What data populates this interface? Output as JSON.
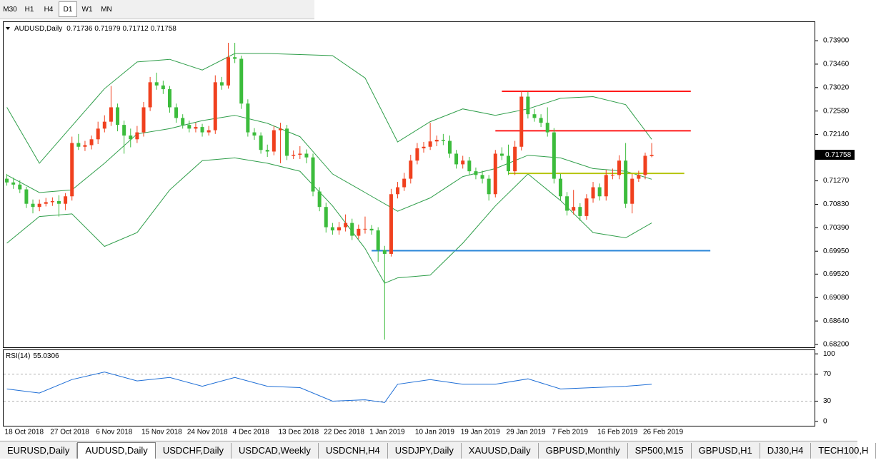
{
  "toolbar": {
    "timeframes": [
      "M30",
      "H1",
      "H4",
      "D1",
      "W1",
      "MN"
    ],
    "active": 3
  },
  "chart_data": [
    {
      "type": "candlestick",
      "title": "AUDUSD,Daily",
      "categories": [
        "18 Oct 2018",
        null,
        null,
        null,
        null,
        null,
        null,
        "27 Oct 2018",
        null,
        null,
        null,
        null,
        null,
        null,
        "6 Nov 2018",
        null,
        null,
        null,
        null,
        null,
        null,
        "15 Nov 2018",
        null,
        null,
        null,
        null,
        null,
        null,
        "24 Nov 2018",
        null,
        null,
        null,
        null,
        null,
        null,
        "4 Dec 2018",
        null,
        null,
        null,
        null,
        null,
        null,
        "13 Dec 2018",
        null,
        null,
        null,
        null,
        null,
        null,
        "22 Dec 2018",
        null,
        null,
        null,
        null,
        null,
        null,
        "1 Jan 2019",
        null,
        null,
        null,
        null,
        null,
        null,
        "10 Jan 2019",
        null,
        null,
        null,
        null,
        null,
        null,
        "19 Jan 2019",
        null,
        null,
        null,
        null,
        null,
        null,
        "29 Jan 2019",
        null,
        null,
        null,
        null,
        null,
        null,
        "7 Feb 2019",
        null,
        null,
        null,
        null,
        null,
        null,
        "16 Feb 2019",
        null,
        null,
        null,
        null,
        null,
        null,
        "26 Feb 2019",
        null
      ],
      "ohlc": [
        [
          0.7131,
          0.714,
          0.7118,
          0.7124
        ],
        [
          0.7124,
          0.7133,
          0.7112,
          0.712
        ],
        [
          0.712,
          0.7128,
          0.7104,
          0.7111
        ],
        [
          0.7111,
          0.7116,
          0.7076,
          0.7084
        ],
        [
          0.7084,
          0.7092,
          0.7066,
          0.7078
        ],
        [
          0.7078,
          0.7092,
          0.707,
          0.7084
        ],
        [
          0.7084,
          0.7095,
          0.7079,
          0.7087
        ],
        [
          0.7087,
          0.7096,
          0.708,
          0.7089
        ],
        [
          0.7089,
          0.71,
          0.706,
          0.7084
        ],
        [
          0.7084,
          0.7104,
          0.7072,
          0.7098
        ],
        [
          0.7098,
          0.721,
          0.709,
          0.7198
        ],
        [
          0.7198,
          0.7215,
          0.7185,
          0.7191
        ],
        [
          0.7191,
          0.7202,
          0.7183,
          0.7194
        ],
        [
          0.7194,
          0.7212,
          0.7186,
          0.7205
        ],
        [
          0.7205,
          0.7238,
          0.7196,
          0.7225
        ],
        [
          0.7225,
          0.725,
          0.7218,
          0.7238
        ],
        [
          0.7238,
          0.7305,
          0.723,
          0.7265
        ],
        [
          0.7265,
          0.7272,
          0.722,
          0.7232
        ],
        [
          0.7232,
          0.724,
          0.7178,
          0.7212
        ],
        [
          0.7212,
          0.7225,
          0.719,
          0.7205
        ],
        [
          0.7205,
          0.723,
          0.7198,
          0.7218
        ],
        [
          0.7218,
          0.7275,
          0.721,
          0.7265
        ],
        [
          0.7265,
          0.7322,
          0.7258,
          0.7312
        ],
        [
          0.7312,
          0.733,
          0.7298,
          0.7306
        ],
        [
          0.7306,
          0.7315,
          0.729,
          0.7299
        ],
        [
          0.7299,
          0.7305,
          0.7255,
          0.7265
        ],
        [
          0.7265,
          0.7272,
          0.7236,
          0.7245
        ],
        [
          0.7245,
          0.7252,
          0.7225,
          0.7232
        ],
        [
          0.7232,
          0.724,
          0.7218,
          0.7225
        ],
        [
          0.7225,
          0.7236,
          0.7218,
          0.7228
        ],
        [
          0.7228,
          0.7234,
          0.721,
          0.7218
        ],
        [
          0.7218,
          0.723,
          0.7212,
          0.7222
        ],
        [
          0.7222,
          0.7325,
          0.7215,
          0.7312
        ],
        [
          0.7312,
          0.7322,
          0.7298,
          0.7306
        ],
        [
          0.7306,
          0.7386,
          0.73,
          0.7359
        ],
        [
          0.7359,
          0.7386,
          0.7348,
          0.7356
        ],
        [
          0.7356,
          0.7362,
          0.7262,
          0.7272
        ],
        [
          0.7272,
          0.728,
          0.721,
          0.7218
        ],
        [
          0.7218,
          0.7226,
          0.7204,
          0.7212
        ],
        [
          0.7212,
          0.7218,
          0.7178,
          0.7185
        ],
        [
          0.7185,
          0.7195,
          0.7172,
          0.7182
        ],
        [
          0.7182,
          0.723,
          0.7175,
          0.7222
        ],
        [
          0.7222,
          0.7236,
          0.716,
          0.7225
        ],
        [
          0.7225,
          0.7232,
          0.7166,
          0.7174
        ],
        [
          0.7174,
          0.7184,
          0.7168,
          0.7176
        ],
        [
          0.7176,
          0.7192,
          0.7168,
          0.7178
        ],
        [
          0.7178,
          0.7186,
          0.716,
          0.7171
        ],
        [
          0.7171,
          0.7178,
          0.7098,
          0.7107
        ],
        [
          0.7107,
          0.7115,
          0.707,
          0.7078
        ],
        [
          0.7078,
          0.7086,
          0.703,
          0.704
        ],
        [
          0.704,
          0.7048,
          0.7026,
          0.7034
        ],
        [
          0.7034,
          0.705,
          0.7026,
          0.704
        ],
        [
          0.704,
          0.7064,
          0.7032,
          0.7048
        ],
        [
          0.7048,
          0.7056,
          0.7016,
          0.7024
        ],
        [
          0.7024,
          0.7045,
          0.7018,
          0.7037
        ],
        [
          0.7037,
          0.706,
          0.7028,
          0.7037
        ],
        [
          0.7037,
          0.7044,
          0.7026,
          0.7034
        ],
        [
          0.7034,
          0.704,
          0.6975,
          0.6997
        ],
        [
          0.6997,
          0.7005,
          0.6829,
          0.699
        ],
        [
          0.699,
          0.7112,
          0.6985,
          0.7102
        ],
        [
          0.7102,
          0.7125,
          0.7094,
          0.7115
        ],
        [
          0.7115,
          0.7142,
          0.7108,
          0.7131
        ],
        [
          0.7131,
          0.7176,
          0.7122,
          0.7165
        ],
        [
          0.7165,
          0.7198,
          0.7158,
          0.7188
        ],
        [
          0.7188,
          0.72,
          0.718,
          0.7191
        ],
        [
          0.7191,
          0.7236,
          0.7185,
          0.7201
        ],
        [
          0.7201,
          0.7212,
          0.7192,
          0.7204
        ],
        [
          0.7204,
          0.7215,
          0.7194,
          0.7202
        ],
        [
          0.7202,
          0.7212,
          0.717,
          0.7178
        ],
        [
          0.7178,
          0.7185,
          0.715,
          0.7158
        ],
        [
          0.7158,
          0.7174,
          0.715,
          0.7165
        ],
        [
          0.7165,
          0.7172,
          0.7138,
          0.7145
        ],
        [
          0.7145,
          0.7152,
          0.713,
          0.7138
        ],
        [
          0.7138,
          0.7146,
          0.7122,
          0.7131
        ],
        [
          0.7131,
          0.7138,
          0.709,
          0.7102
        ],
        [
          0.7102,
          0.7185,
          0.7096,
          0.7178
        ],
        [
          0.7178,
          0.719,
          0.7166,
          0.7174
        ],
        [
          0.7174,
          0.7195,
          0.7138,
          0.7145
        ],
        [
          0.7145,
          0.7202,
          0.7138,
          0.7191
        ],
        [
          0.7191,
          0.7296,
          0.7184,
          0.7285
        ],
        [
          0.7285,
          0.7294,
          0.7244,
          0.7252
        ],
        [
          0.7252,
          0.7262,
          0.7238,
          0.7245
        ],
        [
          0.7245,
          0.7252,
          0.7228,
          0.7236
        ],
        [
          0.7236,
          0.7265,
          0.721,
          0.7218
        ],
        [
          0.7218,
          0.7226,
          0.7122,
          0.7131
        ],
        [
          0.7131,
          0.714,
          0.709,
          0.7098
        ],
        [
          0.7098,
          0.7106,
          0.7062,
          0.7071
        ],
        [
          0.7071,
          0.711,
          0.7064,
          0.7078
        ],
        [
          0.7078,
          0.7085,
          0.7052,
          0.7061
        ],
        [
          0.7061,
          0.7102,
          0.7054,
          0.7094
        ],
        [
          0.7094,
          0.7125,
          0.7086,
          0.7115
        ],
        [
          0.7115,
          0.7122,
          0.709,
          0.7098
        ],
        [
          0.7098,
          0.7148,
          0.709,
          0.7138
        ],
        [
          0.7138,
          0.715,
          0.713,
          0.7138
        ],
        [
          0.7138,
          0.7175,
          0.713,
          0.7165
        ],
        [
          0.7165,
          0.7198,
          0.7076,
          0.7084
        ],
        [
          0.7084,
          0.714,
          0.7066,
          0.7131
        ],
        [
          0.7131,
          0.7146,
          0.7125,
          0.7138
        ],
        [
          0.7138,
          0.718,
          0.713,
          0.7174
        ],
        [
          0.71736,
          0.71979,
          0.71712,
          0.71758
        ]
      ],
      "xlim": [
        -0.5,
        124
      ],
      "ylim": [
        0.68133,
        0.74262
      ],
      "yticks": [
        {
          "value": 0.739,
          "label": "0.73900"
        },
        {
          "value": 0.7346,
          "label": "0.73460"
        },
        {
          "value": 0.7302,
          "label": "0.73020"
        },
        {
          "value": 0.7258,
          "label": "0.72580"
        },
        {
          "value": 0.7214,
          "label": "0.72140"
        },
        {
          "value": 0.717,
          "label": "0.71700"
        },
        {
          "value": 0.7127,
          "label": "0.71270"
        },
        {
          "value": 0.7083,
          "label": "0.70830"
        },
        {
          "value": 0.7039,
          "label": "0.70390"
        },
        {
          "value": 0.6995,
          "label": "0.69950"
        },
        {
          "value": 0.6952,
          "label": "0.69520"
        },
        {
          "value": 0.6908,
          "label": "0.69080"
        },
        {
          "value": 0.6864,
          "label": "0.68640"
        },
        {
          "value": 0.682,
          "label": "0.68200"
        }
      ],
      "up_color": "#f0401e",
      "down_color": "#3cbc3c",
      "bands": [
        {
          "color": "#2f9e4a",
          "x": [
            0,
            5,
            10,
            15,
            20,
            25,
            30,
            35,
            40,
            45,
            50,
            55,
            60,
            65,
            70,
            75,
            80,
            85,
            90,
            95,
            99
          ],
          "values": [
            0.7265,
            0.716,
            0.723,
            0.73,
            0.735,
            0.7355,
            0.7335,
            0.7366,
            0.7366,
            0.7364,
            0.7362,
            0.732,
            0.72,
            0.7238,
            0.7262,
            0.725,
            0.7262,
            0.7282,
            0.7285,
            0.727,
            0.7205
          ]
        },
        {
          "color": "#2f9e4a",
          "x": [
            0,
            5,
            10,
            15,
            20,
            25,
            30,
            35,
            40,
            45,
            50,
            55,
            60,
            65,
            70,
            75,
            80,
            85,
            90,
            95,
            99
          ],
          "values": [
            0.7138,
            0.7105,
            0.711,
            0.716,
            0.7215,
            0.7225,
            0.724,
            0.725,
            0.7235,
            0.721,
            0.714,
            0.7105,
            0.707,
            0.7095,
            0.7135,
            0.715,
            0.7175,
            0.717,
            0.715,
            0.7145,
            0.713
          ]
        },
        {
          "color": "#2f9e4a",
          "x": [
            0,
            5,
            10,
            15,
            20,
            25,
            30,
            35,
            40,
            45,
            50,
            55,
            58,
            60,
            65,
            70,
            75,
            80,
            85,
            90,
            95,
            99
          ],
          "values": [
            0.701,
            0.706,
            0.7065,
            0.7004,
            0.703,
            0.711,
            0.7165,
            0.717,
            0.716,
            0.7145,
            0.708,
            0.7,
            0.6935,
            0.6945,
            0.695,
            0.701,
            0.708,
            0.714,
            0.709,
            0.703,
            0.702,
            0.7048
          ]
        }
      ],
      "lines": [
        {
          "price": 0.7295,
          "from": 76,
          "to": 105,
          "color": "#ff1a1a"
        },
        {
          "price": 0.7221,
          "from": 75,
          "to": 105,
          "color": "#ff1a1a"
        },
        {
          "price": 0.7141,
          "from": 77,
          "to": 104,
          "color": "#b5c40a"
        },
        {
          "price": 0.6996,
          "from": 56,
          "to": 108,
          "color": "#2a86d8"
        }
      ]
    },
    {
      "type": "line",
      "title": "RSI(14)",
      "x": [
        0,
        5,
        10,
        15,
        20,
        25,
        30,
        35,
        40,
        45,
        50,
        55,
        58,
        60,
        65,
        70,
        75,
        80,
        85,
        90,
        95,
        99
      ],
      "values": [
        48,
        42,
        62,
        73,
        60,
        65,
        52,
        65,
        52,
        50,
        30,
        32,
        28,
        55,
        62,
        55,
        55,
        63,
        48,
        50,
        52,
        55.0306
      ],
      "xlim": [
        -0.5,
        124
      ],
      "ylim": [
        -7.5,
        106.5
      ],
      "yticks": [
        100,
        70,
        30,
        0
      ],
      "color": "#1e6ed6",
      "grid": true
    }
  ],
  "tabs": {
    "items": [
      "EURUSD,Daily",
      "AUDUSD,Daily",
      "USDCHF,Daily",
      "USDCAD,Weekly",
      "USDCNH,H4",
      "USDJPY,Daily",
      "XAUUSD,Daily",
      "GBPUSD,Monthly",
      "SP500,M15",
      "GBPUSD,H1",
      "DJ30,H4",
      "TECH100,H"
    ],
    "active": 1
  }
}
